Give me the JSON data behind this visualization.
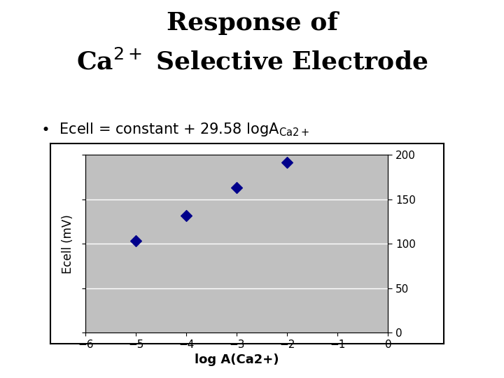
{
  "title_line1": "Response of",
  "title_line2": "Ca$^{2+}$ Selective Electrode",
  "bullet_text": "\\u2022  Ecell = constant + 29.58 logA$_{\\mathrm{Ca2+}}$",
  "x_data": [
    -5,
    -4,
    -3,
    -2
  ],
  "y_data": [
    103,
    132,
    163,
    192
  ],
  "xlabel": "log A(Ca2+)",
  "ylabel": "Ecell (mV)",
  "xlim": [
    -6,
    0
  ],
  "ylim": [
    0,
    200
  ],
  "xticks": [
    -6,
    -5,
    -4,
    -3,
    -2,
    -1,
    0
  ],
  "yticks": [
    0,
    50,
    100,
    150,
    200
  ],
  "marker_color": "#00008B",
  "marker_size": 8,
  "plot_bg_color": "#C0C0C0",
  "fig_bg_color": "#FFFFFF",
  "title_fontsize": 26,
  "label_fontsize": 12,
  "tick_fontsize": 11,
  "bullet_fontsize": 15,
  "ylabel_fontsize": 12
}
